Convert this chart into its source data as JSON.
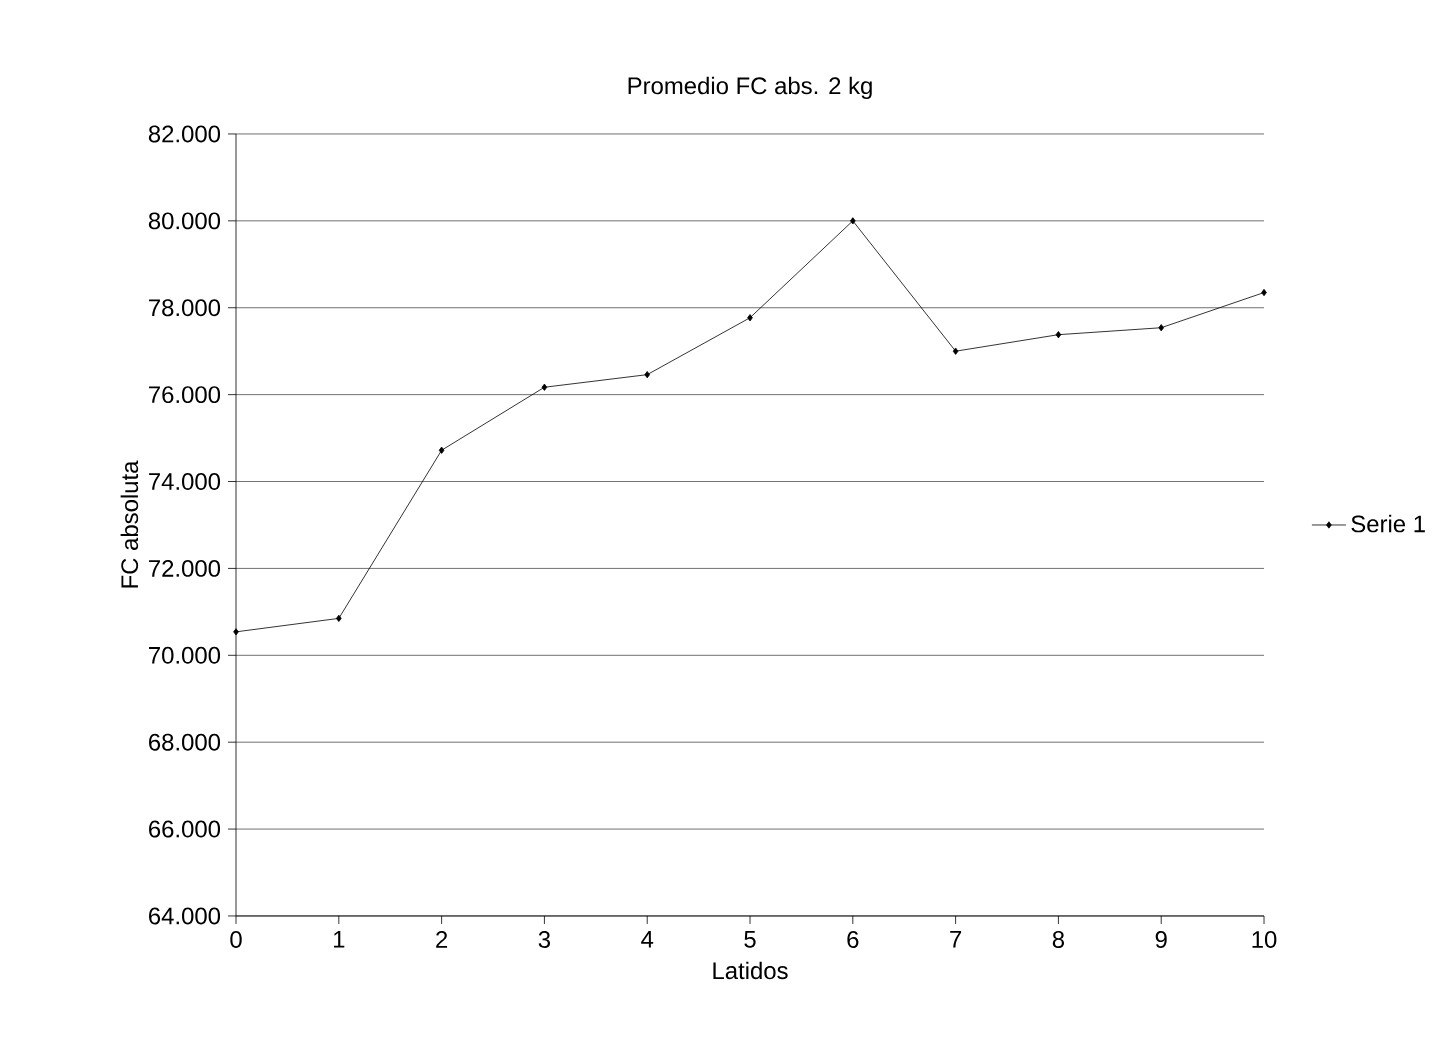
{
  "chart_data": {
    "type": "line",
    "title": "Promedio FC abs. 2 kg",
    "xlabel": "Latidos",
    "ylabel": "FC absoluta",
    "x": [
      0,
      1,
      2,
      3,
      4,
      5,
      6,
      7,
      8,
      9,
      10
    ],
    "series": [
      {
        "name": "Serie 1",
        "color": "#000000",
        "values": [
          70540,
          70850,
          74720,
          76170,
          76460,
          77770,
          80000,
          77000,
          77380,
          77540,
          78350
        ]
      }
    ],
    "xlim": [
      0,
      10
    ],
    "xticks": [
      0,
      1,
      2,
      3,
      4,
      5,
      6,
      7,
      8,
      9,
      10
    ],
    "ylim": [
      64000,
      82000
    ],
    "yticks": [
      {
        "value": 64000,
        "label": "64.000"
      },
      {
        "value": 66000,
        "label": "66.000"
      },
      {
        "value": 68000,
        "label": "68.000"
      },
      {
        "value": 70000,
        "label": "70.000"
      },
      {
        "value": 72000,
        "label": "72.000"
      },
      {
        "value": 74000,
        "label": "74.000"
      },
      {
        "value": 76000,
        "label": "76.000"
      },
      {
        "value": 78000,
        "label": "78.000"
      },
      {
        "value": 80000,
        "label": "80.000"
      },
      {
        "value": 82000,
        "label": "82.000"
      }
    ],
    "grid": "y",
    "legend": "right",
    "marker": "diamond",
    "line_style": "solid"
  }
}
